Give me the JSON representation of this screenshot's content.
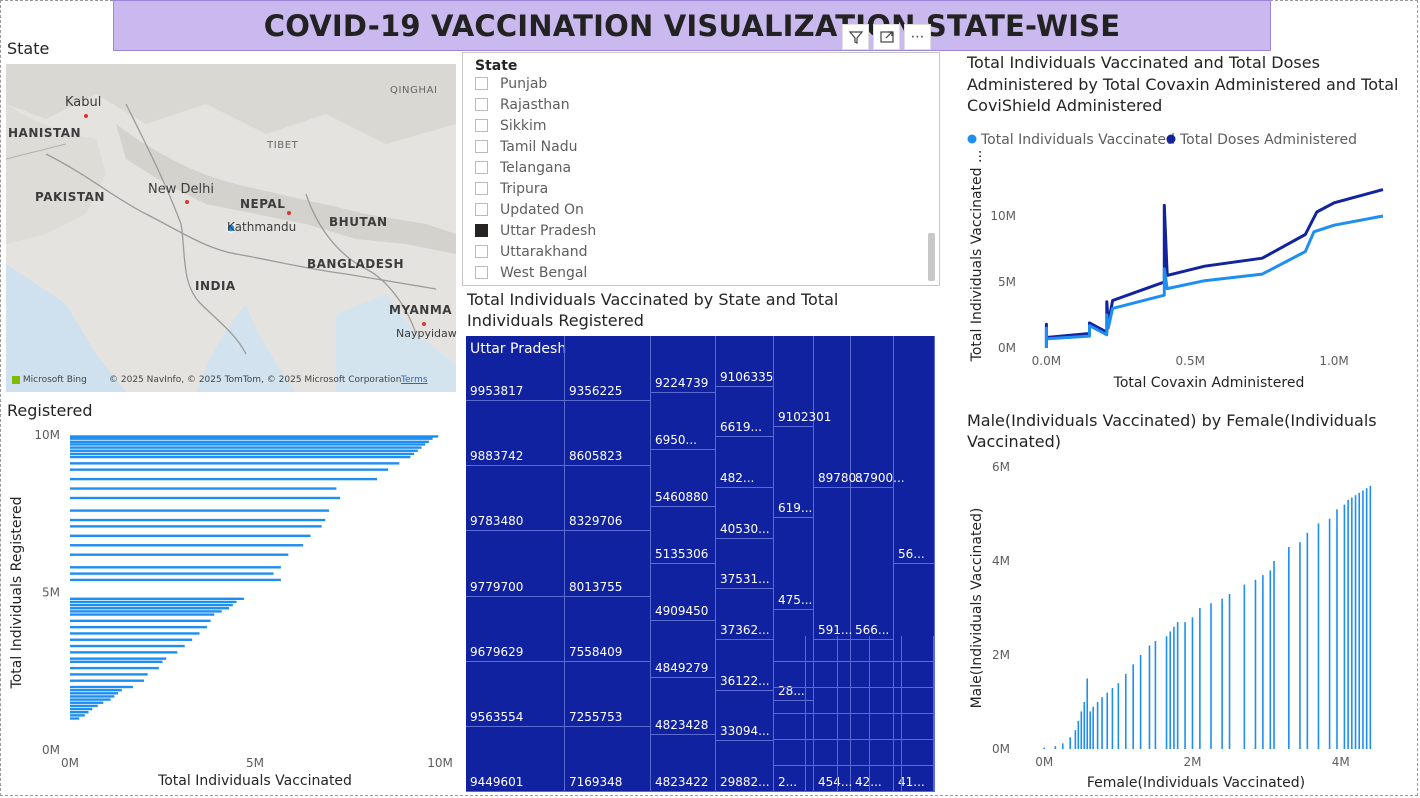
{
  "page": {
    "title": "COVID-19 VACCINATION VISUALIZATION STATE-WISE"
  },
  "map_visual": {
    "title": "State",
    "labels": [
      "Kabul",
      "HANISTAN",
      "PAKISTAN",
      "New Delhi",
      "NEPAL",
      "Kathmandu",
      "TIBET",
      "QINGHAI",
      "BHUTAN",
      "BANGLADESH",
      "INDIA",
      "MYANMA",
      "Naypyidaw"
    ],
    "bing_logo": "Microsoft Bing",
    "copyright": "© 2025 NavInfo, © 2025 TomTom, © 2025 Microsoft Corporation",
    "terms": "Terms"
  },
  "slicer": {
    "header": "State",
    "items": [
      {
        "label": "Punjab",
        "checked": false
      },
      {
        "label": "Rajasthan",
        "checked": false
      },
      {
        "label": "Sikkim",
        "checked": false
      },
      {
        "label": "Tamil Nadu",
        "checked": false
      },
      {
        "label": "Telangana",
        "checked": false
      },
      {
        "label": "Tripura",
        "checked": false
      },
      {
        "label": "Updated On",
        "checked": false
      },
      {
        "label": "Uttar Pradesh",
        "checked": true
      },
      {
        "label": "Uttarakhand",
        "checked": false
      },
      {
        "label": "West Bengal",
        "checked": false
      }
    ],
    "toolbar_icons": [
      "filter-icon",
      "focus-mode-icon",
      "more-options-icon"
    ]
  },
  "treemap": {
    "title": "Total Individuals Vaccinated by State and Total Individuals Registered",
    "group_label": "Uttar Pradesh",
    "color": "#1122a0",
    "columns": [
      {
        "labels": [
          "9953817",
          "9883742",
          "9783480",
          "9779700",
          "9679629",
          "9563554",
          "9449601"
        ]
      },
      {
        "labels": [
          "9356225",
          "8605823",
          "8329706",
          "8013755",
          "7558409",
          "7255753",
          "7169348"
        ]
      },
      {
        "labels": [
          "9224739",
          "6950...",
          "5460880",
          "5135306",
          "4909450",
          "4849279",
          "4823428",
          "4823422"
        ]
      },
      {
        "labels": [
          "9106335",
          "6619...",
          "482...",
          "40530...",
          "37531...",
          "37362...",
          "36122...",
          "33094...",
          "29882..."
        ]
      },
      {
        "labels": [
          "9102301",
          "619...",
          "475...",
          "28...",
          "2..."
        ]
      },
      {
        "labels": [
          "89780...",
          "591...",
          "454..."
        ]
      },
      {
        "labels": [
          "87900...",
          "566...",
          "42..."
        ]
      },
      {
        "labels": [
          "56...",
          "41..."
        ]
      }
    ]
  },
  "chart_data": [
    {
      "id": "registered-bar",
      "type": "bar",
      "title": "Registered",
      "xlabel": "Total Individuals Vaccinated",
      "ylabel": "Total Individuals Registered",
      "xlim": [
        0,
        10000000
      ],
      "ylim": [
        0,
        10000000
      ],
      "xticks": [
        "0M",
        "5M",
        "10M"
      ],
      "yticks": [
        "0M",
        "5M",
        "10M"
      ],
      "color": "#1f8ef1",
      "bars": [
        {
          "registered": 9953817,
          "vaccinated": 9950000
        },
        {
          "registered": 9883742,
          "vaccinated": 9800000
        },
        {
          "registered": 9783480,
          "vaccinated": 9700000
        },
        {
          "registered": 9700000,
          "vaccinated": 9600000
        },
        {
          "registered": 9600000,
          "vaccinated": 9500000
        },
        {
          "registered": 9500000,
          "vaccinated": 9400000
        },
        {
          "registered": 9400000,
          "vaccinated": 9300000
        },
        {
          "registered": 9300000,
          "vaccinated": 9200000
        },
        {
          "registered": 9100000,
          "vaccinated": 8900000
        },
        {
          "registered": 8900000,
          "vaccinated": 8600000
        },
        {
          "registered": 8600000,
          "vaccinated": 8300000
        },
        {
          "registered": 8300000,
          "vaccinated": 7200000
        },
        {
          "registered": 8000000,
          "vaccinated": 7300000
        },
        {
          "registered": 7600000,
          "vaccinated": 7000000
        },
        {
          "registered": 7300000,
          "vaccinated": 6900000
        },
        {
          "registered": 7100000,
          "vaccinated": 6800000
        },
        {
          "registered": 6800000,
          "vaccinated": 6500000
        },
        {
          "registered": 6500000,
          "vaccinated": 6300000
        },
        {
          "registered": 6200000,
          "vaccinated": 5900000
        },
        {
          "registered": 5800000,
          "vaccinated": 5700000
        },
        {
          "registered": 5600000,
          "vaccinated": 5500000
        },
        {
          "registered": 5400000,
          "vaccinated": 5700000
        },
        {
          "registered": 4800000,
          "vaccinated": 4700000
        },
        {
          "registered": 4700000,
          "vaccinated": 4500000
        },
        {
          "registered": 4600000,
          "vaccinated": 4400000
        },
        {
          "registered": 4500000,
          "vaccinated": 4300000
        },
        {
          "registered": 4400000,
          "vaccinated": 4100000
        },
        {
          "registered": 4300000,
          "vaccinated": 3900000
        },
        {
          "registered": 4100000,
          "vaccinated": 3800000
        },
        {
          "registered": 3900000,
          "vaccinated": 3700000
        },
        {
          "registered": 3700000,
          "vaccinated": 3500000
        },
        {
          "registered": 3500000,
          "vaccinated": 3300000
        },
        {
          "registered": 3300000,
          "vaccinated": 3100000
        },
        {
          "registered": 3100000,
          "vaccinated": 2900000
        },
        {
          "registered": 2900000,
          "vaccinated": 2600000
        },
        {
          "registered": 2800000,
          "vaccinated": 2500000
        },
        {
          "registered": 2600000,
          "vaccinated": 2400000
        },
        {
          "registered": 2400000,
          "vaccinated": 2100000
        },
        {
          "registered": 2200000,
          "vaccinated": 2000000
        },
        {
          "registered": 2000000,
          "vaccinated": 1700000
        },
        {
          "registered": 1900000,
          "vaccinated": 1400000
        },
        {
          "registered": 1800000,
          "vaccinated": 1300000
        },
        {
          "registered": 1700000,
          "vaccinated": 1200000
        },
        {
          "registered": 1600000,
          "vaccinated": 1100000
        },
        {
          "registered": 1500000,
          "vaccinated": 900000
        },
        {
          "registered": 1400000,
          "vaccinated": 750000
        },
        {
          "registered": 1300000,
          "vaccinated": 600000
        },
        {
          "registered": 1200000,
          "vaccinated": 500000
        },
        {
          "registered": 1100000,
          "vaccinated": 400000
        },
        {
          "registered": 1000000,
          "vaccinated": 250000
        }
      ]
    },
    {
      "id": "covaxin-line",
      "type": "line",
      "title": "Total Individuals Vaccinated and Total Doses Administered by Total Covaxin Administered and Total CoviShield Administered",
      "xlabel": "Total Covaxin Administered",
      "ylabel": "Total Individuals Vaccinated ...",
      "xlim": [
        -50000,
        1250000
      ],
      "ylim": [
        0,
        12500000
      ],
      "xticks": [
        "0.0M",
        "0.5M",
        "1.0M"
      ],
      "yticks": [
        "0M",
        "5M",
        "10M"
      ],
      "legend_position": "top-left",
      "series": [
        {
          "name": "Total Individuals Vaccinated",
          "color": "#1f8ef1",
          "x": [
            0,
            0,
            0,
            5000,
            150000,
            150000,
            210000,
            210000,
            215000,
            230000,
            410000,
            410000,
            420000,
            550000,
            750000,
            900000,
            930000,
            1000000,
            1170000
          ],
          "y": [
            0,
            1500000,
            700000,
            700000,
            900000,
            1700000,
            1000000,
            2500000,
            1500000,
            3000000,
            4000000,
            6000000,
            4500000,
            5100000,
            5600000,
            7300000,
            8800000,
            9300000,
            10000000
          ]
        },
        {
          "name": "Total Doses Administered",
          "color": "#12239e",
          "x": [
            0,
            0,
            0,
            5000,
            150000,
            150000,
            210000,
            210000,
            215000,
            230000,
            410000,
            410000,
            420000,
            550000,
            750000,
            900000,
            940000,
            1000000,
            1170000
          ],
          "y": [
            0,
            1800000,
            800000,
            800000,
            1100000,
            1900000,
            1200000,
            3500000,
            1800000,
            3600000,
            5000000,
            10800000,
            5500000,
            6200000,
            6800000,
            8600000,
            10300000,
            11000000,
            12000000
          ]
        }
      ]
    },
    {
      "id": "gender-bar",
      "type": "bar",
      "title": "Male(Individuals Vaccinated) by Female(Individuals Vaccinated)",
      "xlabel": "Female(Individuals Vaccinated)",
      "ylabel": "Male(Individuals Vaccinated)",
      "xlim": [
        -300000,
        4800000
      ],
      "ylim": [
        0,
        6000000
      ],
      "xticks": [
        "0M",
        "2M",
        "4M"
      ],
      "yticks": [
        "0M",
        "2M",
        "4M",
        "6M"
      ],
      "color": "#1f8ef1",
      "points": [
        {
          "female": 0,
          "male": 30000
        },
        {
          "female": 150000,
          "male": 60000
        },
        {
          "female": 250000,
          "male": 120000
        },
        {
          "female": 350000,
          "male": 250000
        },
        {
          "female": 420000,
          "male": 400000
        },
        {
          "female": 460000,
          "male": 600000
        },
        {
          "female": 500000,
          "male": 800000
        },
        {
          "female": 540000,
          "male": 1000000
        },
        {
          "female": 580000,
          "male": 1500000
        },
        {
          "female": 620000,
          "male": 800000
        },
        {
          "female": 660000,
          "male": 900000
        },
        {
          "female": 720000,
          "male": 1000000
        },
        {
          "female": 780000,
          "male": 1100000
        },
        {
          "female": 850000,
          "male": 1200000
        },
        {
          "female": 920000,
          "male": 1300000
        },
        {
          "female": 1000000,
          "male": 1400000
        },
        {
          "female": 1100000,
          "male": 1600000
        },
        {
          "female": 1200000,
          "male": 1800000
        },
        {
          "female": 1300000,
          "male": 2000000
        },
        {
          "female": 1420000,
          "male": 2200000
        },
        {
          "female": 1500000,
          "male": 2300000
        },
        {
          "female": 1650000,
          "male": 2400000
        },
        {
          "female": 1700000,
          "male": 2500000
        },
        {
          "female": 1750000,
          "male": 2600000
        },
        {
          "female": 1800000,
          "male": 2700000
        },
        {
          "female": 1900000,
          "male": 2700000
        },
        {
          "female": 2000000,
          "male": 2800000
        },
        {
          "female": 2100000,
          "male": 3000000
        },
        {
          "female": 2250000,
          "male": 3100000
        },
        {
          "female": 2400000,
          "male": 3200000
        },
        {
          "female": 2500000,
          "male": 3300000
        },
        {
          "female": 2700000,
          "male": 3500000
        },
        {
          "female": 2850000,
          "male": 3600000
        },
        {
          "female": 2950000,
          "male": 3700000
        },
        {
          "female": 3050000,
          "male": 3800000
        },
        {
          "female": 3100000,
          "male": 4000000
        },
        {
          "female": 3300000,
          "male": 4300000
        },
        {
          "female": 3450000,
          "male": 4400000
        },
        {
          "female": 3550000,
          "male": 4600000
        },
        {
          "female": 3700000,
          "male": 4800000
        },
        {
          "female": 3850000,
          "male": 4900000
        },
        {
          "female": 3950000,
          "male": 5100000
        },
        {
          "female": 4050000,
          "male": 5200000
        },
        {
          "female": 4100000,
          "male": 5300000
        },
        {
          "female": 4150000,
          "male": 5350000
        },
        {
          "female": 4200000,
          "male": 5400000
        },
        {
          "female": 4250000,
          "male": 5450000
        },
        {
          "female": 4300000,
          "male": 5500000
        },
        {
          "female": 4350000,
          "male": 5550000
        },
        {
          "female": 4400000,
          "male": 5600000
        }
      ]
    }
  ]
}
